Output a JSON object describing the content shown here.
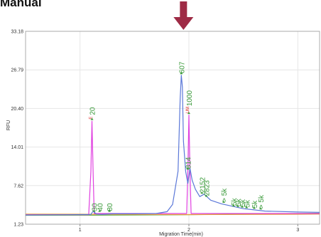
{
  "header": {
    "text": "Manual"
  },
  "chart_data": {
    "type": "line",
    "title": "",
    "xlabel": "Migration Time(min)",
    "ylabel": "RFU",
    "xlim": [
      0.5,
      3.2
    ],
    "ylim": [
      1.23,
      33.18
    ],
    "y_ticks": [
      1.23,
      7.62,
      14.01,
      20.4,
      26.79,
      33.18
    ],
    "y_tick_labels": [
      "1.23",
      "7.62",
      "14.01",
      "20.40",
      "26.79",
      "33.18"
    ],
    "x_ticks": [
      1,
      2,
      3
    ],
    "x_tick_labels": [
      "1",
      "2",
      "3"
    ],
    "grid": true,
    "colors": {
      "blue": "#5b78d8",
      "magenta": "#e040e0",
      "green": "#6ab04c",
      "orange": "#e89a3c",
      "label_green": "#3a9a3a",
      "marker_red": "#e03030",
      "arrow": "#9e2b45"
    },
    "arrow_at_x": 1.95,
    "series": [
      {
        "color_key": "blue",
        "points": [
          [
            0.5,
            2.75
          ],
          [
            0.9,
            2.8
          ],
          [
            1.1,
            2.85
          ],
          [
            1.12,
            3.4
          ],
          [
            1.15,
            2.9
          ],
          [
            1.2,
            2.85
          ],
          [
            1.3,
            2.95
          ],
          [
            1.5,
            2.95
          ],
          [
            1.7,
            3.0
          ],
          [
            1.8,
            3.3
          ],
          [
            1.85,
            4.5
          ],
          [
            1.9,
            10.0
          ],
          [
            1.92,
            22.0
          ],
          [
            1.93,
            25.9
          ],
          [
            1.94,
            24.0
          ],
          [
            1.95,
            15.0
          ],
          [
            1.97,
            10.0
          ],
          [
            1.99,
            8.0
          ],
          [
            2.01,
            10.5
          ],
          [
            2.03,
            8.5
          ],
          [
            2.06,
            7.0
          ],
          [
            2.1,
            5.8
          ],
          [
            2.14,
            6.2
          ],
          [
            2.2,
            5.2
          ],
          [
            2.3,
            4.6
          ],
          [
            2.4,
            4.2
          ],
          [
            2.5,
            3.8
          ],
          [
            2.7,
            3.4
          ],
          [
            3.0,
            3.25
          ],
          [
            3.2,
            3.2
          ]
        ]
      },
      {
        "color_key": "magenta",
        "points": [
          [
            0.5,
            2.8
          ],
          [
            1.08,
            2.8
          ],
          [
            1.1,
            10.0
          ],
          [
            1.11,
            18.3
          ],
          [
            1.12,
            10.0
          ],
          [
            1.13,
            3.0
          ],
          [
            1.98,
            3.0
          ],
          [
            1.99,
            10.0
          ],
          [
            2.0,
            19.3
          ],
          [
            2.01,
            10.0
          ],
          [
            2.02,
            3.0
          ],
          [
            3.2,
            3.0
          ]
        ]
      },
      {
        "color_key": "green",
        "points": [
          [
            0.5,
            2.7
          ],
          [
            1.0,
            2.72
          ],
          [
            1.5,
            2.75
          ],
          [
            2.0,
            2.8
          ],
          [
            2.5,
            2.9
          ],
          [
            3.0,
            3.0
          ],
          [
            3.2,
            3.05
          ]
        ]
      },
      {
        "color_key": "orange",
        "points": [
          [
            0.5,
            2.9
          ],
          [
            1.0,
            2.88
          ],
          [
            1.5,
            2.85
          ],
          [
            2.0,
            2.82
          ],
          [
            2.5,
            2.85
          ],
          [
            3.0,
            2.88
          ],
          [
            3.2,
            2.9
          ]
        ]
      }
    ],
    "peak_labels": [
      {
        "text": "20",
        "x": 1.11,
        "y": 18.6,
        "marker": "E"
      },
      {
        "text": "30",
        "x": 1.13,
        "y": 3.4
      },
      {
        "text": "40",
        "x": 1.18,
        "y": 3.4
      },
      {
        "text": "80",
        "x": 1.27,
        "y": 3.4
      },
      {
        "text": "607",
        "x": 1.93,
        "y": 26.2
      },
      {
        "text": "1000",
        "x": 2.0,
        "y": 19.6,
        "marker": "UM"
      },
      {
        "text": "814",
        "x": 1.99,
        "y": 10.4
      },
      {
        "text": "2152",
        "x": 2.12,
        "y": 6.4
      },
      {
        "text": "2823",
        "x": 2.16,
        "y": 5.9
      },
      {
        "text": "> 5k",
        "x": 2.32,
        "y": 4.9
      },
      {
        "text": "5k",
        "x": 2.41,
        "y": 4.3
      },
      {
        "text": "5k",
        "x": 2.45,
        "y": 4.2
      },
      {
        "text": "5k",
        "x": 2.49,
        "y": 4.1
      },
      {
        "text": "5k",
        "x": 2.53,
        "y": 4.0
      },
      {
        "text": "5k",
        "x": 2.6,
        "y": 3.9
      },
      {
        "text": "> 5k",
        "x": 2.66,
        "y": 3.8
      }
    ]
  }
}
